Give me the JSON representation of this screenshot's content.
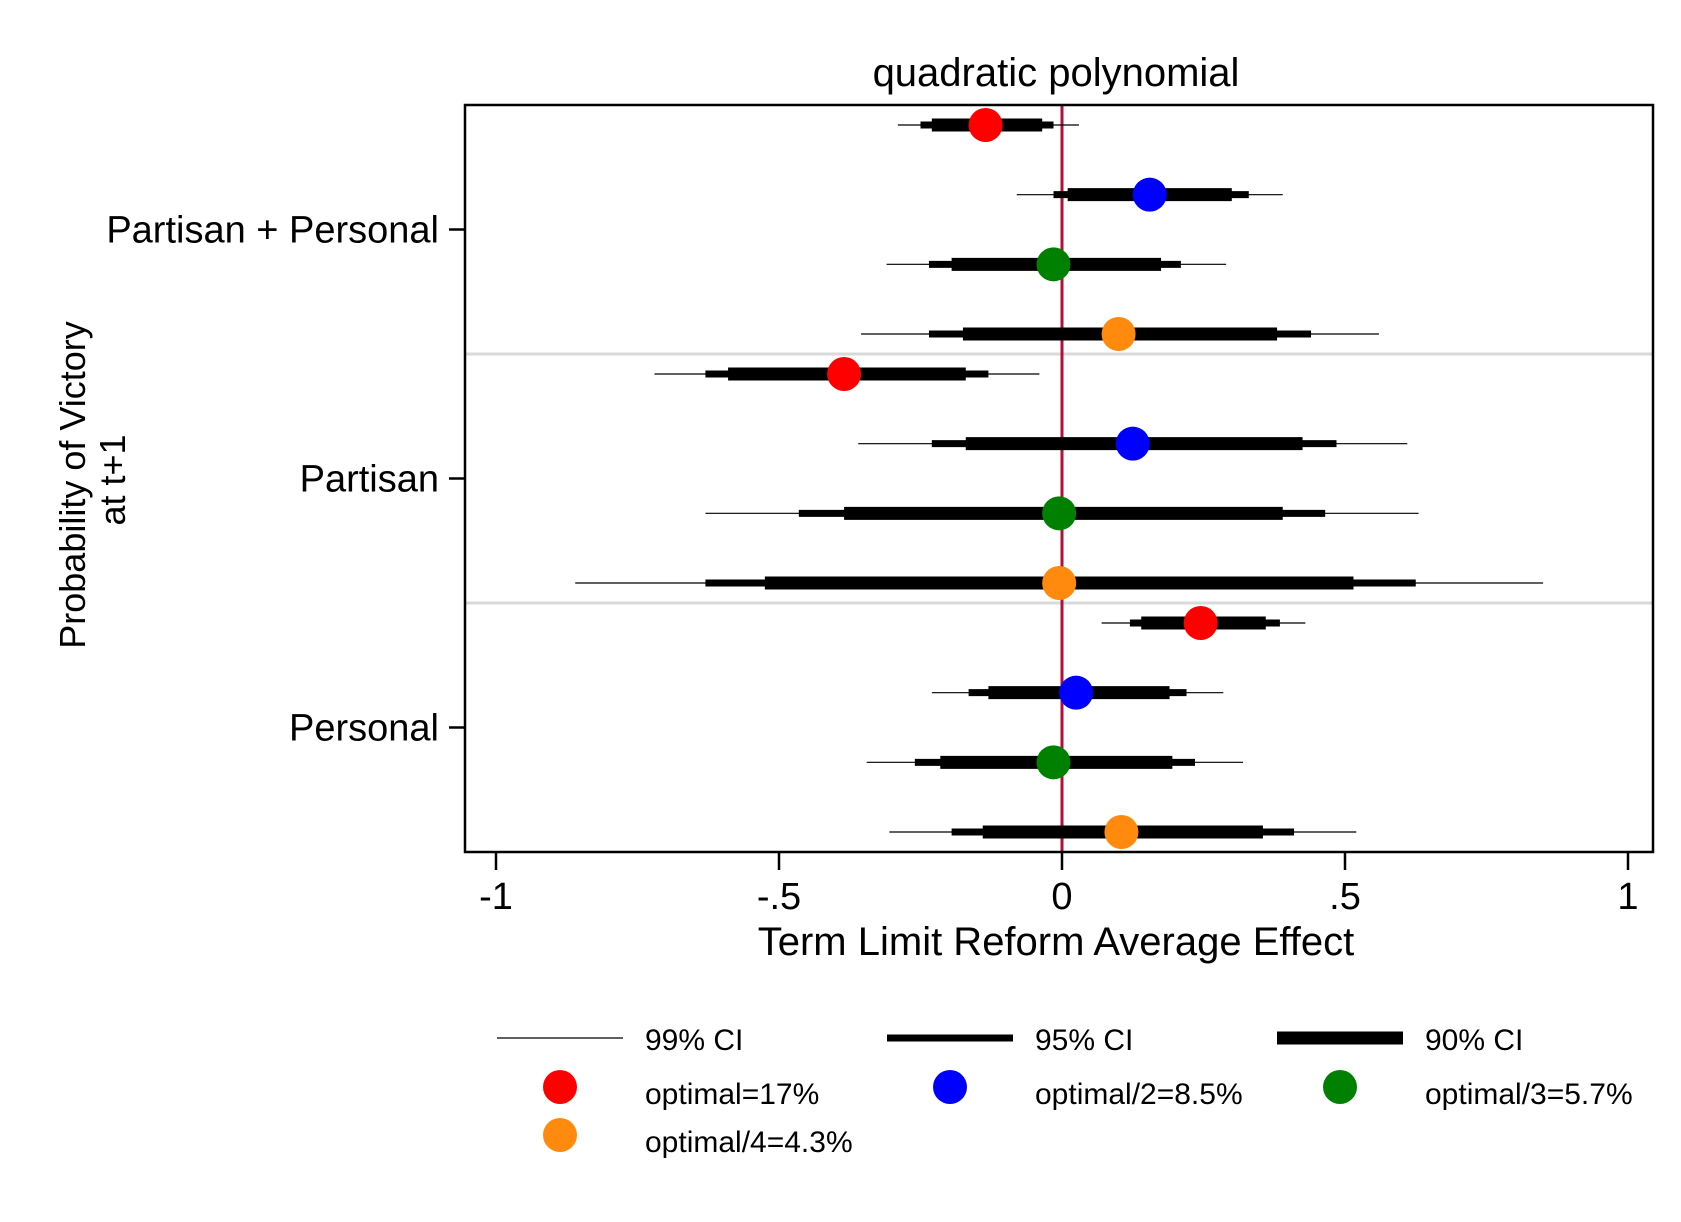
{
  "chart_data": {
    "type": "scatter",
    "title": "quadratic polynomial",
    "xlabel": "Term Limit Reform Average Effect",
    "ylabel_lines": [
      "Probability of Victory",
      "at t+1"
    ],
    "xlim": [
      -1.05,
      1.05
    ],
    "x_ticks": [
      -1,
      -0.5,
      0,
      0.5,
      1
    ],
    "x_tick_labels": [
      "-1",
      "-.5",
      "0",
      ".5",
      "1"
    ],
    "reference_line": {
      "x": 0,
      "color": "#b0103a"
    },
    "grid": false,
    "legend_position": "bottom",
    "groups": [
      {
        "label": "Partisan + Personal",
        "key": "partisan_personal"
      },
      {
        "label": "Partisan",
        "key": "partisan"
      },
      {
        "label": "Personal",
        "key": "personal"
      }
    ],
    "series": [
      {
        "name": "optimal=17%",
        "color": "#ff0000",
        "points": [
          {
            "group": "Partisan + Personal",
            "estimate": -0.135,
            "ci90": [
              -0.23,
              -0.035
            ],
            "ci95": [
              -0.25,
              -0.015
            ],
            "ci99": [
              -0.29,
              0.03
            ]
          },
          {
            "group": "Partisan",
            "estimate": -0.385,
            "ci90": [
              -0.59,
              -0.17
            ],
            "ci95": [
              -0.63,
              -0.13
            ],
            "ci99": [
              -0.72,
              -0.04
            ]
          },
          {
            "group": "Personal",
            "estimate": 0.245,
            "ci90": [
              0.14,
              0.36
            ],
            "ci95": [
              0.12,
              0.385
            ],
            "ci99": [
              0.07,
              0.43
            ]
          }
        ]
      },
      {
        "name": "optimal/2=8.5%",
        "color": "#0000ff",
        "points": [
          {
            "group": "Partisan + Personal",
            "estimate": 0.155,
            "ci90": [
              0.01,
              0.3
            ],
            "ci95": [
              -0.015,
              0.33
            ],
            "ci99": [
              -0.08,
              0.39
            ]
          },
          {
            "group": "Partisan",
            "estimate": 0.125,
            "ci90": [
              -0.17,
              0.425
            ],
            "ci95": [
              -0.23,
              0.485
            ],
            "ci99": [
              -0.36,
              0.61
            ]
          },
          {
            "group": "Personal",
            "estimate": 0.025,
            "ci90": [
              -0.13,
              0.19
            ],
            "ci95": [
              -0.165,
              0.22
            ],
            "ci99": [
              -0.23,
              0.285
            ]
          }
        ]
      },
      {
        "name": "optimal/3=5.7%",
        "color": "#008000",
        "points": [
          {
            "group": "Partisan + Personal",
            "estimate": -0.015,
            "ci90": [
              -0.195,
              0.175
            ],
            "ci95": [
              -0.235,
              0.21
            ],
            "ci99": [
              -0.31,
              0.29
            ]
          },
          {
            "group": "Partisan",
            "estimate": -0.005,
            "ci90": [
              -0.385,
              0.39
            ],
            "ci95": [
              -0.465,
              0.465
            ],
            "ci99": [
              -0.63,
              0.63
            ]
          },
          {
            "group": "Personal",
            "estimate": -0.015,
            "ci90": [
              -0.215,
              0.195
            ],
            "ci95": [
              -0.26,
              0.235
            ],
            "ci99": [
              -0.345,
              0.32
            ]
          }
        ]
      },
      {
        "name": "optimal/4=4.3%",
        "color": "#ff8a0d",
        "points": [
          {
            "group": "Partisan + Personal",
            "estimate": 0.1,
            "ci90": [
              -0.175,
              0.38
            ],
            "ci95": [
              -0.235,
              0.44
            ],
            "ci99": [
              -0.355,
              0.56
            ]
          },
          {
            "group": "Partisan",
            "estimate": -0.005,
            "ci90": [
              -0.525,
              0.515
            ],
            "ci95": [
              -0.63,
              0.625
            ],
            "ci99": [
              -0.86,
              0.85
            ]
          },
          {
            "group": "Personal",
            "estimate": 0.105,
            "ci90": [
              -0.14,
              0.355
            ],
            "ci95": [
              -0.195,
              0.41
            ],
            "ci99": [
              -0.305,
              0.52
            ]
          }
        ]
      }
    ],
    "legend": {
      "ci_items": [
        "99% CI",
        "95% CI",
        "90% CI"
      ],
      "marker_items": [
        "optimal=17%",
        "optimal/2=8.5%",
        "optimal/3=5.7%",
        "optimal/4=4.3%"
      ]
    }
  }
}
